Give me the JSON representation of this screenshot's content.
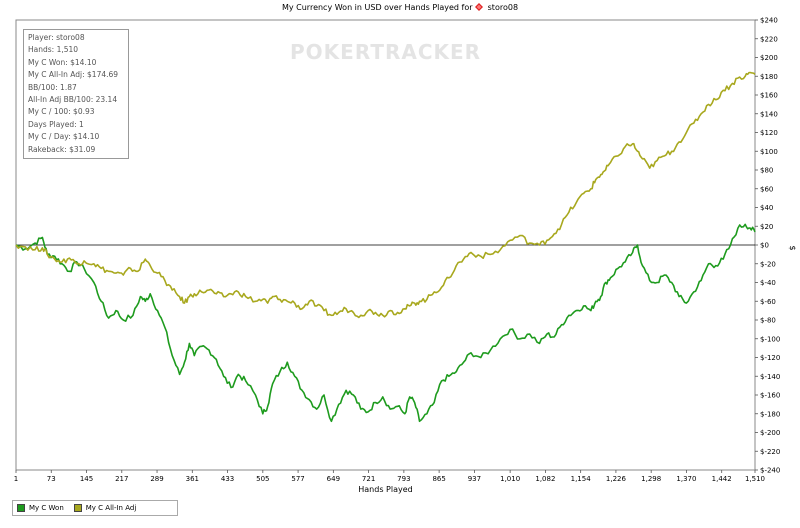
{
  "title_prefix": "My Currency Won in USD over Hands Played for",
  "player_name": "storo08",
  "watermark": "POKERTRACKER",
  "stats": [
    "Player: storo08",
    "Hands: 1,510",
    "My C Won: $14.10",
    "My C All-In Adj: $174.69",
    "BB/100: 1.87",
    "All-In Adj BB/100: 23.14",
    "My C / 100: $0.93",
    "Days Played: 1",
    "My C / Day: $14.10",
    "Rakeback: $31.09"
  ],
  "colors": {
    "my_c_won": "#1e9b1e",
    "all_in_adj": "#a8a81e",
    "zero_line": "#000000"
  },
  "chart_data": {
    "type": "line",
    "title": "My Currency Won in USD over Hands Played for storo08",
    "xlabel": "Hands Played",
    "ylabel": "$",
    "xlim": [
      1,
      1510
    ],
    "ylim": [
      -240,
      240
    ],
    "x_ticks": [
      1,
      73,
      145,
      217,
      289,
      361,
      433,
      505,
      577,
      649,
      721,
      793,
      865,
      937,
      1010,
      1082,
      1154,
      1226,
      1298,
      1370,
      1442,
      1510
    ],
    "x_tick_labels": [
      "1",
      "73",
      "145",
      "217",
      "289",
      "361",
      "433",
      "505",
      "577",
      "649",
      "721",
      "793",
      "865",
      "937",
      "1,010",
      "1,082",
      "1,154",
      "1,226",
      "1,298",
      "1,370",
      "1,442",
      "1,510"
    ],
    "y_ticks": [
      240,
      220,
      200,
      180,
      160,
      140,
      120,
      100,
      80,
      60,
      40,
      20,
      0,
      -20,
      -40,
      -60,
      -80,
      -100,
      -120,
      -140,
      -160,
      -180,
      -200,
      -220,
      -240
    ],
    "y_tick_labels": [
      "$240",
      "$220",
      "$200",
      "$180",
      "$160",
      "$140",
      "$120",
      "$100",
      "$80",
      "$60",
      "$40",
      "$20",
      "$0",
      "$-20",
      "$-40",
      "$-60",
      "$-80",
      "$-100",
      "$-120",
      "$-140",
      "$-160",
      "$-180",
      "$-200",
      "$-220",
      "$-240"
    ],
    "legend_position": "bottom-left",
    "grid": false,
    "series": [
      {
        "name": "My C Won",
        "x": [
          1,
          20,
          40,
          55,
          65,
          80,
          95,
          110,
          125,
          140,
          160,
          175,
          190,
          205,
          220,
          240,
          255,
          265,
          275,
          290,
          305,
          320,
          335,
          345,
          355,
          365,
          380,
          395,
          410,
          425,
          440,
          455,
          470,
          490,
          505,
          515,
          525,
          540,
          555,
          570,
          585,
          600,
          615,
          630,
          645,
          660,
          675,
          690,
          705,
          720,
          735,
          750,
          765,
          780,
          795,
          805,
          815,
          825,
          840,
          855,
          870,
          885,
          900,
          915,
          930,
          950,
          970,
          990,
          1010,
          1030,
          1050,
          1070,
          1085,
          1100,
          1115,
          1130,
          1145,
          1160,
          1175,
          1185,
          1195,
          1205,
          1215,
          1230,
          1245,
          1260,
          1270,
          1280,
          1295,
          1310,
          1325,
          1340,
          1355,
          1370,
          1385,
          1400,
          1415,
          1430,
          1445,
          1460,
          1475,
          1490,
          1500,
          1510
        ],
        "y": [
          0,
          -4,
          2,
          8,
          -10,
          -12,
          -20,
          -28,
          -18,
          -25,
          -40,
          -60,
          -78,
          -70,
          -80,
          -75,
          -55,
          -60,
          -52,
          -70,
          -88,
          -118,
          -138,
          -125,
          -105,
          -118,
          -108,
          -112,
          -122,
          -140,
          -152,
          -138,
          -145,
          -160,
          -180,
          -172,
          -148,
          -135,
          -125,
          -140,
          -155,
          -165,
          -175,
          -160,
          -188,
          -170,
          -155,
          -160,
          -175,
          -178,
          -168,
          -162,
          -175,
          -172,
          -180,
          -162,
          -168,
          -188,
          -180,
          -168,
          -145,
          -140,
          -135,
          -125,
          -115,
          -120,
          -112,
          -100,
          -90,
          -100,
          -95,
          -105,
          -95,
          -98,
          -85,
          -75,
          -70,
          -65,
          -70,
          -60,
          -55,
          -40,
          -35,
          -25,
          -18,
          -8,
          0,
          -22,
          -38,
          -40,
          -32,
          -40,
          -55,
          -62,
          -50,
          -38,
          -20,
          -22,
          -15,
          0,
          18,
          22,
          18,
          14
        ]
      },
      {
        "name": "My C All-In Adj",
        "x": [
          1,
          20,
          40,
          55,
          65,
          80,
          95,
          110,
          125,
          140,
          160,
          175,
          190,
          205,
          220,
          235,
          250,
          265,
          275,
          290,
          305,
          320,
          335,
          345,
          355,
          365,
          380,
          395,
          410,
          425,
          440,
          455,
          470,
          490,
          505,
          515,
          525,
          540,
          555,
          570,
          585,
          600,
          615,
          630,
          645,
          660,
          675,
          690,
          705,
          720,
          735,
          750,
          765,
          780,
          795,
          805,
          815,
          825,
          840,
          855,
          870,
          885,
          900,
          915,
          930,
          950,
          970,
          990,
          1010,
          1030,
          1050,
          1070,
          1085,
          1100,
          1115,
          1130,
          1145,
          1160,
          1175,
          1185,
          1195,
          1205,
          1215,
          1230,
          1245,
          1260,
          1270,
          1280,
          1295,
          1310,
          1325,
          1340,
          1355,
          1370,
          1385,
          1400,
          1415,
          1430,
          1445,
          1460,
          1475,
          1490,
          1500,
          1510
        ],
        "y": [
          0,
          -2,
          -5,
          -3,
          -10,
          -15,
          -18,
          -14,
          -20,
          -17,
          -20,
          -25,
          -28,
          -30,
          -32,
          -25,
          -28,
          -15,
          -22,
          -30,
          -38,
          -48,
          -55,
          -62,
          -55,
          -52,
          -50,
          -48,
          -52,
          -55,
          -52,
          -50,
          -55,
          -60,
          -58,
          -62,
          -55,
          -58,
          -60,
          -62,
          -68,
          -60,
          -65,
          -70,
          -75,
          -72,
          -68,
          -72,
          -75,
          -70,
          -72,
          -75,
          -70,
          -72,
          -68,
          -65,
          -62,
          -60,
          -58,
          -50,
          -45,
          -35,
          -22,
          -15,
          -8,
          -12,
          -10,
          -5,
          5,
          10,
          2,
          0,
          5,
          12,
          22,
          35,
          45,
          55,
          60,
          70,
          75,
          80,
          88,
          95,
          105,
          108,
          100,
          92,
          82,
          90,
          95,
          100,
          110,
          120,
          130,
          140,
          150,
          155,
          165,
          170,
          178,
          180,
          184,
          182
        ]
      }
    ]
  }
}
